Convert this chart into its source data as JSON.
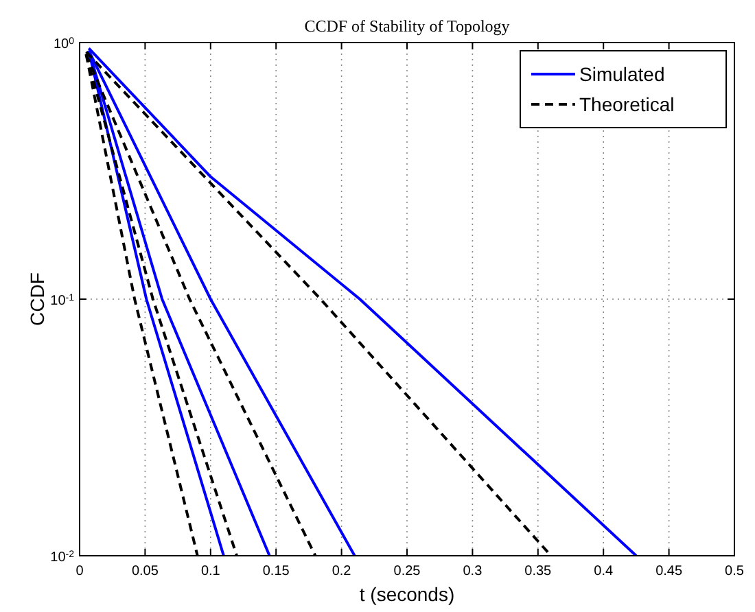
{
  "chart_data": {
    "type": "line",
    "title": "CCDF of Stability of Topology",
    "xlabel": "t (seconds)",
    "ylabel": "CCDF",
    "log": "y",
    "grid": true,
    "legend": "top right",
    "xlim": [
      0,
      0.5
    ],
    "xticks": [
      0,
      0.05,
      0.1,
      0.15,
      0.2,
      0.25,
      0.3,
      0.35,
      0.4,
      0.45,
      0.5
    ],
    "ylim": [
      0.01,
      1
    ],
    "yticks": [
      {
        "value": 0.01,
        "label": "10$^{-2}$"
      },
      {
        "value": 0.1,
        "label": "10$^{-1}$"
      },
      {
        "value": 1,
        "label": "10$^{0}$"
      }
    ],
    "series": [
      {
        "name": "Simulated",
        "color": "#0000ff",
        "line_style": "solid",
        "x": [
          0.007,
          0.1,
          0.214,
          0.425
        ],
        "values": [
          0.95,
          0.3,
          0.1,
          0.01
        ]
      },
      {
        "color": "#0000ff",
        "line_style": "solid",
        "x": [
          0.007,
          0.1,
          0.21
        ],
        "values": [
          0.93,
          0.1,
          0.01
        ]
      },
      {
        "color": "#0000ff",
        "line_style": "solid",
        "x": [
          0.007,
          0.063,
          0.145
        ],
        "values": [
          0.93,
          0.1,
          0.01
        ]
      },
      {
        "color": "#0000ff",
        "line_style": "solid",
        "x": [
          0.007,
          0.051,
          0.11
        ],
        "values": [
          0.93,
          0.1,
          0.01
        ]
      },
      {
        "name": "Theoretical",
        "color": "#000000",
        "line_style": "dashed",
        "x": [
          0.005,
          0.184,
          0.36
        ],
        "values": [
          0.92,
          0.1,
          0.01
        ]
      },
      {
        "color": "#000000",
        "line_style": "dashed",
        "x": [
          0.005,
          0.084,
          0.18
        ],
        "values": [
          0.9,
          0.1,
          0.01
        ]
      },
      {
        "color": "#000000",
        "line_style": "dashed",
        "x": [
          0.005,
          0.056,
          0.12
        ],
        "values": [
          0.9,
          0.1,
          0.01
        ]
      },
      {
        "color": "#000000",
        "line_style": "dashed",
        "x": [
          0.005,
          0.042,
          0.09
        ],
        "values": [
          0.9,
          0.1,
          0.01
        ]
      }
    ]
  }
}
